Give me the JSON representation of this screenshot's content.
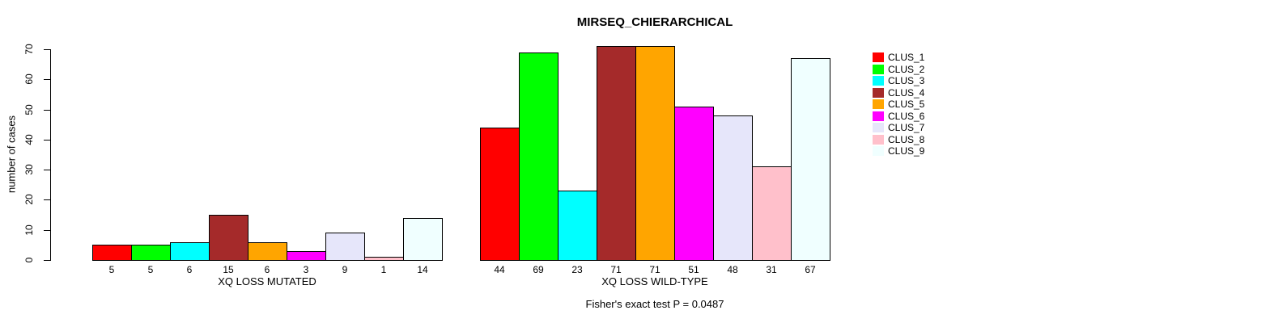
{
  "chart_data": {
    "type": "bar",
    "title": "MIRSEQ_CHIERARCHICAL",
    "ylabel": "number of cases",
    "xlabel": "",
    "ylim": [
      0,
      70
    ],
    "yticks": [
      0,
      10,
      20,
      30,
      40,
      50,
      60,
      70
    ],
    "grid": false,
    "legend_position": "right",
    "annotation": "Fisher's exact test P = 0.0487",
    "series_labels": [
      "CLUS_1",
      "CLUS_2",
      "CLUS_3",
      "CLUS_4",
      "CLUS_5",
      "CLUS_6",
      "CLUS_7",
      "CLUS_8",
      "CLUS_9"
    ],
    "colors": [
      "#FF0000",
      "#00FF00",
      "#00FFFF",
      "#A52A2A",
      "#FFA500",
      "#FF00FF",
      "#E6E6FA",
      "#FFC0CB",
      "#F0FFFF"
    ],
    "groups": [
      {
        "label": "XQ LOSS MUTATED",
        "values": [
          5,
          5,
          6,
          15,
          6,
          3,
          9,
          1,
          14
        ]
      },
      {
        "label": "XQ LOSS WILD-TYPE",
        "values": [
          44,
          69,
          23,
          71,
          71,
          51,
          48,
          31,
          67
        ]
      }
    ],
    "bar_border_color": "#000000",
    "text_color": "#000000",
    "background_color": "#FFFFFF"
  }
}
